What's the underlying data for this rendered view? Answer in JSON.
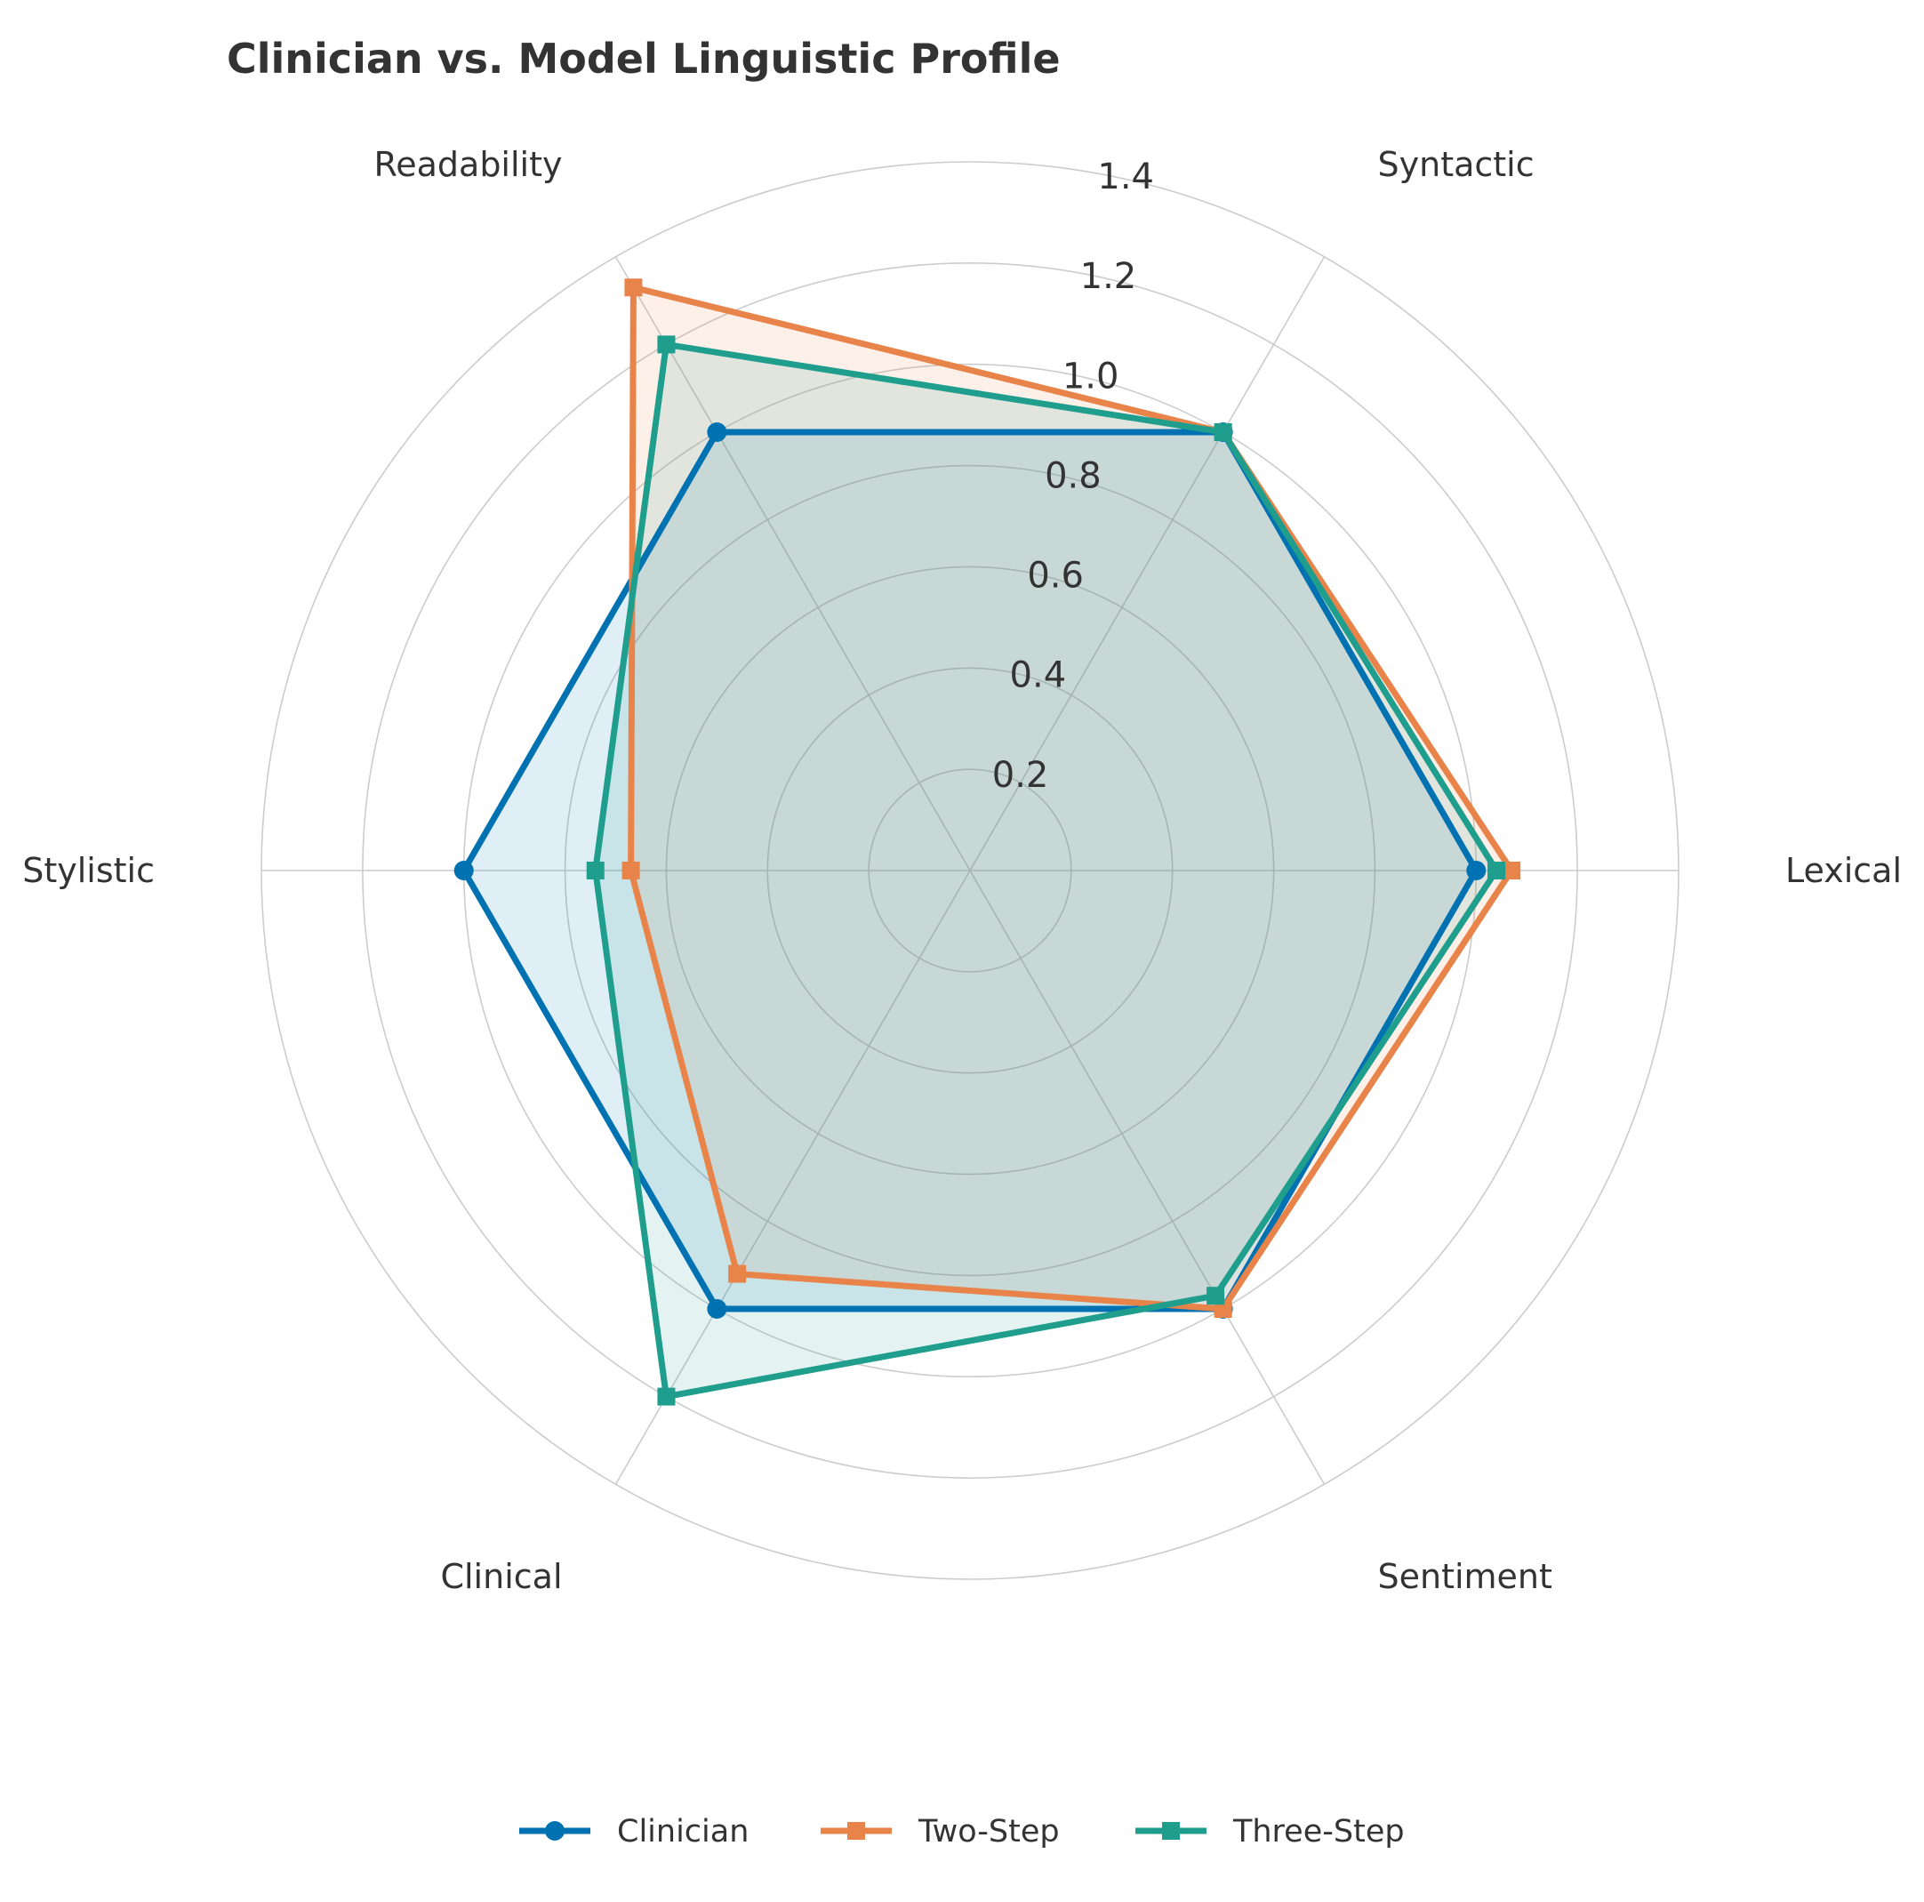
{
  "chart_data": {
    "type": "radar",
    "title": "Clinician vs. Model Linguistic Profile",
    "axes": [
      "Lexical",
      "Syntactic",
      "Readability",
      "Stylistic",
      "Clinical",
      "Sentiment"
    ],
    "rlim": [
      0,
      1.4
    ],
    "rticks": [
      0.2,
      0.4,
      0.6,
      0.8,
      1.0,
      1.2,
      1.4
    ],
    "rtick_labels": [
      "0.2",
      "0.4",
      "0.6",
      "0.8",
      "1.0",
      "1.2",
      "1.4"
    ],
    "grid": true,
    "legend_position": "bottom",
    "series": [
      {
        "name": "Clinician",
        "color": "#0072b2",
        "marker": "circle",
        "values": [
          1.0,
          1.0,
          1.0,
          1.0,
          1.0,
          1.0
        ]
      },
      {
        "name": "Two-Step",
        "color": "#e8834a",
        "marker": "square",
        "values": [
          1.07,
          1.0,
          1.33,
          0.67,
          0.92,
          1.0
        ]
      },
      {
        "name": "Three-Step",
        "color": "#1f9e8e",
        "marker": "square",
        "values": [
          1.04,
          1.0,
          1.2,
          0.74,
          1.2,
          0.97
        ]
      }
    ]
  }
}
